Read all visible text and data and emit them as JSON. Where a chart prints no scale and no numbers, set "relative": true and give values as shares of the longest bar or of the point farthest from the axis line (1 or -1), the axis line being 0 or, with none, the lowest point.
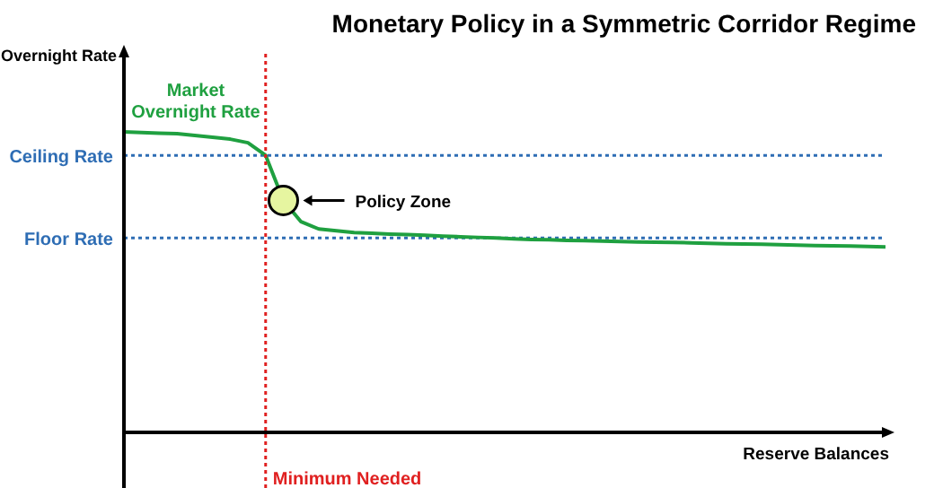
{
  "chart_data": {
    "type": "line",
    "title": "Monetary Policy in a Symmetric Corridor Regime",
    "xlabel": "Reserve Balances",
    "ylabel": "Overnight Rate",
    "relative": true,
    "categories": [
      null,
      null,
      null,
      null,
      null,
      null,
      null,
      null,
      null,
      null,
      null,
      null,
      null,
      null,
      null,
      null,
      null,
      null,
      null,
      null,
      null,
      null,
      null,
      null,
      null,
      null,
      null,
      null,
      null,
      null,
      null,
      null,
      null,
      null,
      null,
      null,
      null,
      null,
      null,
      null,
      null,
      null,
      null,
      null
    ],
    "series": [
      {
        "name": "Market Overnight Rate",
        "color": "#1fa040",
        "values": [
          1.0,
          0.998,
          0.996,
          0.994,
          0.988,
          0.982,
          0.976,
          0.964,
          0.922,
          0.772,
          0.701,
          0.677,
          0.671,
          0.665,
          0.663,
          0.66,
          0.658,
          0.656,
          0.653,
          0.651,
          0.649,
          0.647,
          0.644,
          0.642,
          0.641,
          0.639,
          0.638,
          0.637,
          0.635,
          0.634,
          0.633,
          0.632,
          0.631,
          0.629,
          0.628,
          0.627,
          0.626,
          0.625,
          0.623,
          0.622,
          0.621,
          0.62,
          0.619,
          0.617
        ]
      }
    ],
    "ref_lines": [
      {
        "axis": "y",
        "value": 0.922,
        "label": "Ceiling Rate",
        "color": "#2e6db4",
        "line_style": "dotted"
      },
      {
        "axis": "y",
        "value": 0.647,
        "label": "Floor Rate",
        "color": "#2e6db4",
        "line_style": "dotted"
      }
    ],
    "annotations": [
      "Policy Zone",
      "Minimum Needed"
    ],
    "legend": false,
    "grid": false,
    "marker": "none",
    "line_style": "solid"
  }
}
